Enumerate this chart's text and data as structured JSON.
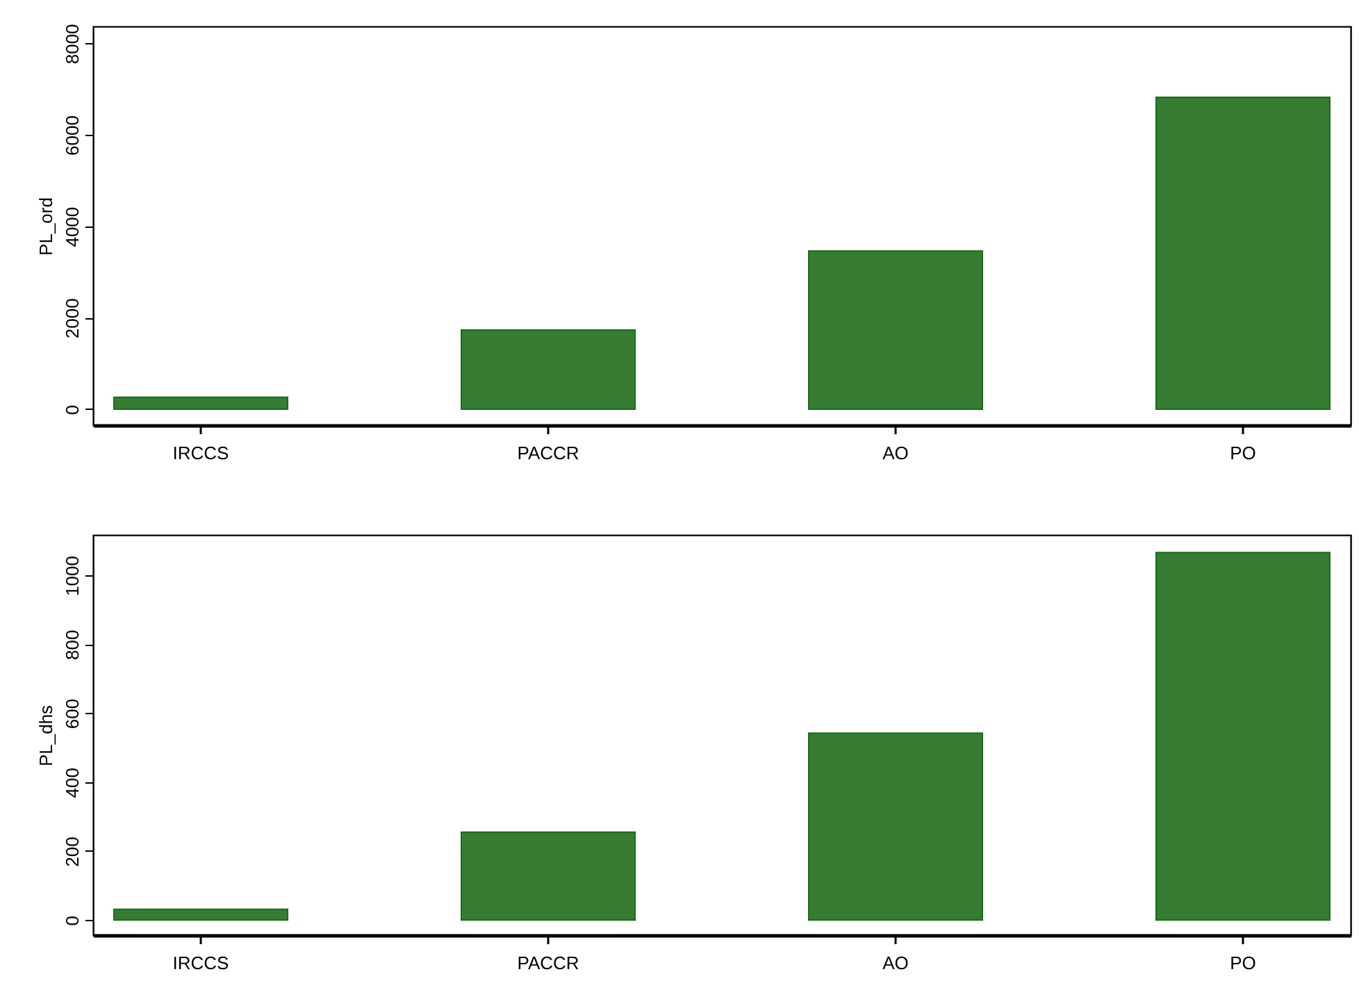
{
  "chart_data": [
    {
      "type": "bar",
      "ylabel": "PL_ord",
      "categories": [
        "IRCCS",
        "PACCR",
        "AO",
        "PO"
      ],
      "values": [
        260,
        1730,
        3460,
        6820
      ],
      "color": "#367d33",
      "ylim": [
        -350,
        8370
      ],
      "yticks": [
        0,
        2000,
        4000,
        6000,
        8000
      ]
    },
    {
      "type": "bar",
      "ylabel": "PL_dhs",
      "categories": [
        "IRCCS",
        "PACCR",
        "AO",
        "PO"
      ],
      "values": [
        31,
        255,
        542,
        1066
      ],
      "color": "#367d33",
      "ylim": [
        -44,
        1117
      ],
      "yticks": [
        0,
        200,
        400,
        600,
        800,
        1000
      ]
    }
  ]
}
